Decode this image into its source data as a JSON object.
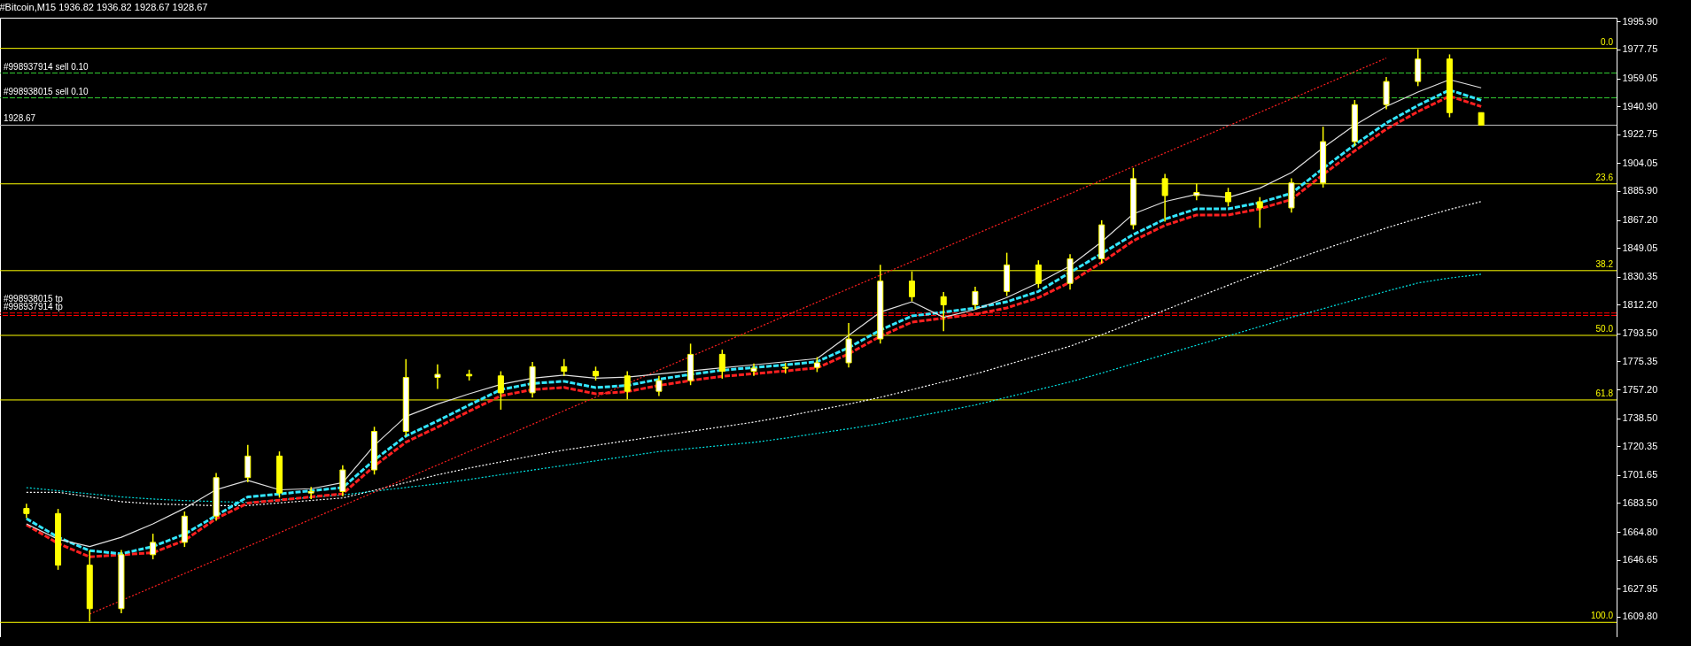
{
  "chart_data": {
    "type": "candlestick",
    "title": "#Bitcoin,M15  1936.82 1936.82 1928.67 1928.67",
    "categories": [
      null,
      null,
      null,
      null,
      null,
      null,
      null,
      null,
      null,
      null,
      null,
      null,
      null,
      null,
      null,
      null,
      null,
      null,
      null,
      null,
      null,
      null,
      null,
      null,
      null,
      null,
      null,
      null,
      null,
      null,
      null,
      null,
      null,
      null,
      null,
      null,
      null,
      null,
      null,
      null,
      null,
      null,
      null,
      null,
      null,
      null,
      null
    ],
    "ylim": [
      1596.5,
      1998.4
    ],
    "tick_labels": "y",
    "yticks": [
      {
        "value": 1995.9,
        "label": "1995.90"
      },
      {
        "value": 1977.75,
        "label": "1977.75"
      },
      {
        "value": 1959.05,
        "label": "1959.05"
      },
      {
        "value": 1940.9,
        "label": "1940.90"
      },
      {
        "value": 1922.75,
        "label": "1922.75"
      },
      {
        "value": 1904.05,
        "label": "1904.05"
      },
      {
        "value": 1885.9,
        "label": "1885.90"
      },
      {
        "value": 1867.2,
        "label": "1867.20"
      },
      {
        "value": 1849.05,
        "label": "1849.05"
      },
      {
        "value": 1830.35,
        "label": "1830.35"
      },
      {
        "value": 1812.2,
        "label": "1812.20"
      },
      {
        "value": 1793.5,
        "label": "1793.50"
      },
      {
        "value": 1775.35,
        "label": "1775.35"
      },
      {
        "value": 1757.2,
        "label": "1757.20"
      },
      {
        "value": 1738.5,
        "label": "1738.50"
      },
      {
        "value": 1720.35,
        "label": "1720.35"
      },
      {
        "value": 1701.65,
        "label": "1701.65"
      },
      {
        "value": 1683.5,
        "label": "1683.50"
      },
      {
        "value": 1664.8,
        "label": "1664.80"
      },
      {
        "value": 1646.65,
        "label": "1646.65"
      },
      {
        "value": 1627.95,
        "label": "1627.95"
      },
      {
        "value": 1609.8,
        "label": "1609.80"
      }
    ],
    "ohlc": [
      [
        1680,
        1683,
        1673.7,
        1676.7
      ],
      [
        1676.7,
        1679.7,
        1640.2,
        1643.2
      ],
      [
        1643.2,
        1652.9,
        1606.7,
        1615
      ],
      [
        1615,
        1653,
        1612,
        1650
      ],
      [
        1650,
        1663.6,
        1647,
        1658
      ],
      [
        1658,
        1678,
        1655,
        1675
      ],
      [
        1675,
        1703,
        1672,
        1700
      ],
      [
        1700,
        1721.3,
        1697,
        1714
      ],
      [
        1714,
        1717,
        1687,
        1690
      ],
      [
        1690,
        1694,
        1686,
        1691
      ],
      [
        1691,
        1708,
        1688,
        1705
      ],
      [
        1705,
        1733,
        1702,
        1730
      ],
      [
        1730,
        1776.9,
        1727,
        1765
      ],
      [
        1765,
        1773.5,
        1757.5,
        1767
      ],
      [
        1767,
        1770,
        1763,
        1766
      ],
      [
        1766,
        1769,
        1744.1,
        1755
      ],
      [
        1755,
        1775,
        1752,
        1772
      ],
      [
        1772,
        1776.9,
        1766,
        1769
      ],
      [
        1769,
        1772,
        1763,
        1766
      ],
      [
        1766,
        1769,
        1750.8,
        1756
      ],
      [
        1756,
        1766,
        1753,
        1763
      ],
      [
        1763,
        1786.9,
        1760,
        1780
      ],
      [
        1780,
        1783,
        1764.2,
        1769
      ],
      [
        1769,
        1774,
        1766,
        1771
      ],
      [
        1771,
        1774.5,
        1767.5,
        1771.5
      ],
      [
        1771.5,
        1778.2,
        1768.5,
        1774.5
      ],
      [
        1774.5,
        1800.3,
        1771.5,
        1790
      ],
      [
        1790,
        1838,
        1787,
        1827.5
      ],
      [
        1827.5,
        1833.8,
        1814.4,
        1817.4
      ],
      [
        1817.4,
        1820.4,
        1795,
        1812.1
      ],
      [
        1812.1,
        1823.8,
        1809.1,
        1820.8
      ],
      [
        1820.8,
        1845.9,
        1817.8,
        1838
      ],
      [
        1838,
        1841,
        1823,
        1826
      ],
      [
        1826,
        1845,
        1822,
        1842
      ],
      [
        1842,
        1867,
        1839,
        1864
      ],
      [
        1864,
        1900.9,
        1861,
        1894
      ],
      [
        1894,
        1897,
        1866,
        1883
      ],
      [
        1883,
        1890.8,
        1880,
        1885
      ],
      [
        1885,
        1888,
        1876,
        1879
      ],
      [
        1879,
        1882,
        1862,
        1875
      ],
      [
        1875,
        1894.2,
        1872,
        1891.2
      ],
      [
        1891.2,
        1927.7,
        1888.2,
        1918
      ],
      [
        1918,
        1945,
        1915,
        1942
      ],
      [
        1942,
        1960,
        1939,
        1957
      ],
      [
        1957,
        1978,
        1954,
        1971.6
      ],
      [
        1971.6,
        1974.6,
        1933.8,
        1936.82
      ],
      [
        1936.82,
        1936.82,
        1928.67,
        1928.67
      ]
    ],
    "series": [
      {
        "type": "line",
        "color": "#ffffff",
        "line_style": "dotted",
        "values": [
          1690.5,
          1690.5,
          1687.5,
          1684.4,
          1683.0,
          1682.4,
          1681.8,
          1681.9,
          1683.6,
          1685.2,
          1686.8,
          1691.8,
          1696.8,
          1701.8,
          1706.2,
          1710.2,
          1714.2,
          1717.9,
          1720.9,
          1724.0,
          1727.0,
          1730.0,
          1733.0,
          1736.0,
          1739.7,
          1743.7,
          1747.7,
          1752.1,
          1757.1,
          1762.2,
          1767.2,
          1773.2,
          1779.3,
          1785.3,
          1792.7,
          1800.7,
          1808.7,
          1816.8,
          1824.8,
          1832.9,
          1840.9,
          1848.0,
          1855.0,
          1862.0,
          1868.2,
          1874.0,
          1879.1
        ]
      },
      {
        "type": "line",
        "color": "#00e5e5",
        "line_style": "dotted",
        "values": [
          1693.5,
          1691.5,
          1689.5,
          1687.5,
          1686.1,
          1685.1,
          null,
          1683.9,
          1685.6,
          1687.2,
          1688.8,
          1691.2,
          1693.6,
          1696.0,
          1698.8,
          1701.9,
          1704.9,
          1707.9,
          1710.9,
          1713.9,
          1716.9,
          1718.9,
          1720.9,
          1722.9,
          1725.6,
          1728.7,
          1731.7,
          1735.0,
          1739.1,
          1743.1,
          1747.1,
          1752.1,
          1757.1,
          1762.1,
          1767.8,
          1773.9,
          1779.9,
          1785.9,
          1791.9,
          1798.0,
          1804.0,
          1809.6,
          1815.3,
          1820.9,
          1826.3,
          1829.5,
          1832.0
        ]
      },
      {
        "type": "line",
        "color": "#ff2020",
        "line_style": "dotted",
        "values": [
          null,
          null,
          1611.5,
          null,
          1629.0,
          1637.8,
          1646.6,
          1655.4,
          1664.2,
          1673.0,
          1681.8,
          1690.6,
          1699.4,
          1708.2,
          1717.0,
          1725.8,
          1734.6,
          1743.4,
          1752.2,
          1761.0,
          1769.8,
          null,
          1787.4,
          1796.2,
          1805.0,
          1813.8,
          1822.6,
          1831.4,
          1840.2,
          1849.0,
          1857.8,
          1866.6,
          1875.4,
          1884.2,
          1893.0,
          1901.8,
          1910.6,
          1919.4,
          1928.2,
          1937.0,
          1945.8,
          1954.6,
          1963.4,
          1972.2,
          null,
          null,
          null
        ]
      },
      {
        "type": "line",
        "color": "#ff2020",
        "line_style": "dashed",
        "values": [
          1669.4,
          1657.3,
          1648.6,
          null,
          1651.3,
          1659.3,
          1673.4,
          1683.5,
          1685.4,
          1687.5,
          1689.5,
          1707.5,
          1723.0,
          1732.8,
          1743.1,
          1753.1,
          1757.1,
          1758.5,
          1754.4,
          1755.8,
          1759.8,
          1763.0,
          1765.7,
          1767.4,
          1769.2,
          1771.2,
          1780.3,
          1791.7,
          1800.9,
          1803.4,
          1806.0,
          1810.1,
          1816.8,
          1826.8,
          1839.6,
          1853.7,
          1863.7,
          1870.4,
          1870.4,
          1874.4,
          1880.5,
          1896.6,
          1912.0,
          1926.1,
          1937.5,
          1947.5,
          1940.8
        ]
      },
      {
        "type": "line",
        "color": "#33e6ff",
        "line_style": "dashed",
        "values": [
          1673.4,
          1661.3,
          1652.6,
          1650.6,
          1655.3,
          1663.3,
          null,
          1687.5,
          1689.4,
          1691.5,
          1693.5,
          1711.5,
          1727.0,
          1736.8,
          1747.1,
          1757.1,
          1761.1,
          1762.5,
          1758.4,
          1759.8,
          1763.8,
          1767.0,
          1769.7,
          1771.4,
          1773.2,
          1775.2,
          1784.3,
          1795.7,
          1804.9,
          1807.4,
          1810.0,
          1814.1,
          1820.8,
          null,
          null,
          1857.7,
          1867.7,
          1874.4,
          1874.4,
          1878.4,
          1884.5,
          1900.6,
          1916.0,
          1930.1,
          1941.5,
          1951.5,
          1944.8
        ]
      },
      {
        "type": "line",
        "color": "#e0e0e0",
        "line_style": "solid",
        "values": [
          1670.0,
          1660.0,
          1655.3,
          1661.3,
          1670.0,
          1680.1,
          1692.2,
          1698.2,
          1692.1,
          1692.8,
          1696.8,
          1720.9,
          1739.7,
          1747.7,
          1754.4,
          1760.5,
          1764.5,
          1766.5,
          1764.5,
          1765.2,
          1767.2,
          1769.2,
          1771.2,
          1773.2,
          1775.2,
          1777.2,
          1792.3,
          1807.4,
          1814.1,
          1804.0,
          1809.1,
          1816.8,
          1826.4,
          1837.3,
          1853.0,
          1871.1,
          1879.1,
          1883.8,
          1881.8,
          1887.8,
          1897.9,
          1914.0,
          1928.7,
          1940.8,
          1950.2,
          1958.2,
          1952.9
        ]
      }
    ],
    "ref_lines": [
      {
        "axis": "y",
        "value": 1978.5,
        "color": "#ffff00",
        "line_style": "solid"
      },
      {
        "axis": "y",
        "value": 1890.6,
        "color": "#ffff00",
        "line_style": "solid"
      },
      {
        "axis": "y",
        "value": 1834.3,
        "color": "#ffff00",
        "line_style": "solid"
      },
      {
        "axis": "y",
        "value": 1792.3,
        "color": "#ffff00",
        "line_style": "solid"
      },
      {
        "axis": "y",
        "value": 1750.4,
        "color": "#ffff00",
        "line_style": "solid"
      },
      {
        "axis": "y",
        "value": 1606.1,
        "color": "#ffff00",
        "line_style": "solid"
      },
      {
        "axis": "y",
        "value": 1962.5,
        "label": "#998937914 sell 0.10",
        "color": "#32cd32",
        "line_style": "dashed"
      },
      {
        "axis": "y",
        "value": 1946.4,
        "label": "#998938015 sell 0.10",
        "color": "#32cd32",
        "line_style": "dashed"
      },
      {
        "axis": "y",
        "value": 1806.8,
        "label": "#998937914 tp",
        "color": "#ff0000",
        "line_style": "dashed"
      },
      {
        "axis": "y",
        "value": 1805.2,
        "label": "#998938015 tp",
        "color": "#ff0000",
        "line_style": "dashed"
      },
      {
        "axis": "y",
        "value": 1928.67,
        "label": "1928.67",
        "color": "#c0c0c0",
        "line_style": "solid"
      }
    ],
    "annotations": [
      {
        "text": "0.0",
        "y": 1978.5
      },
      {
        "text": "23.6",
        "y": 1890.6
      },
      {
        "text": "38.2",
        "y": 1834.3
      },
      {
        "text": "50.0",
        "y": 1792.3
      },
      {
        "text": "61.8",
        "y": 1750.4
      },
      {
        "text": "100.0",
        "y": 1606.1
      }
    ]
  }
}
